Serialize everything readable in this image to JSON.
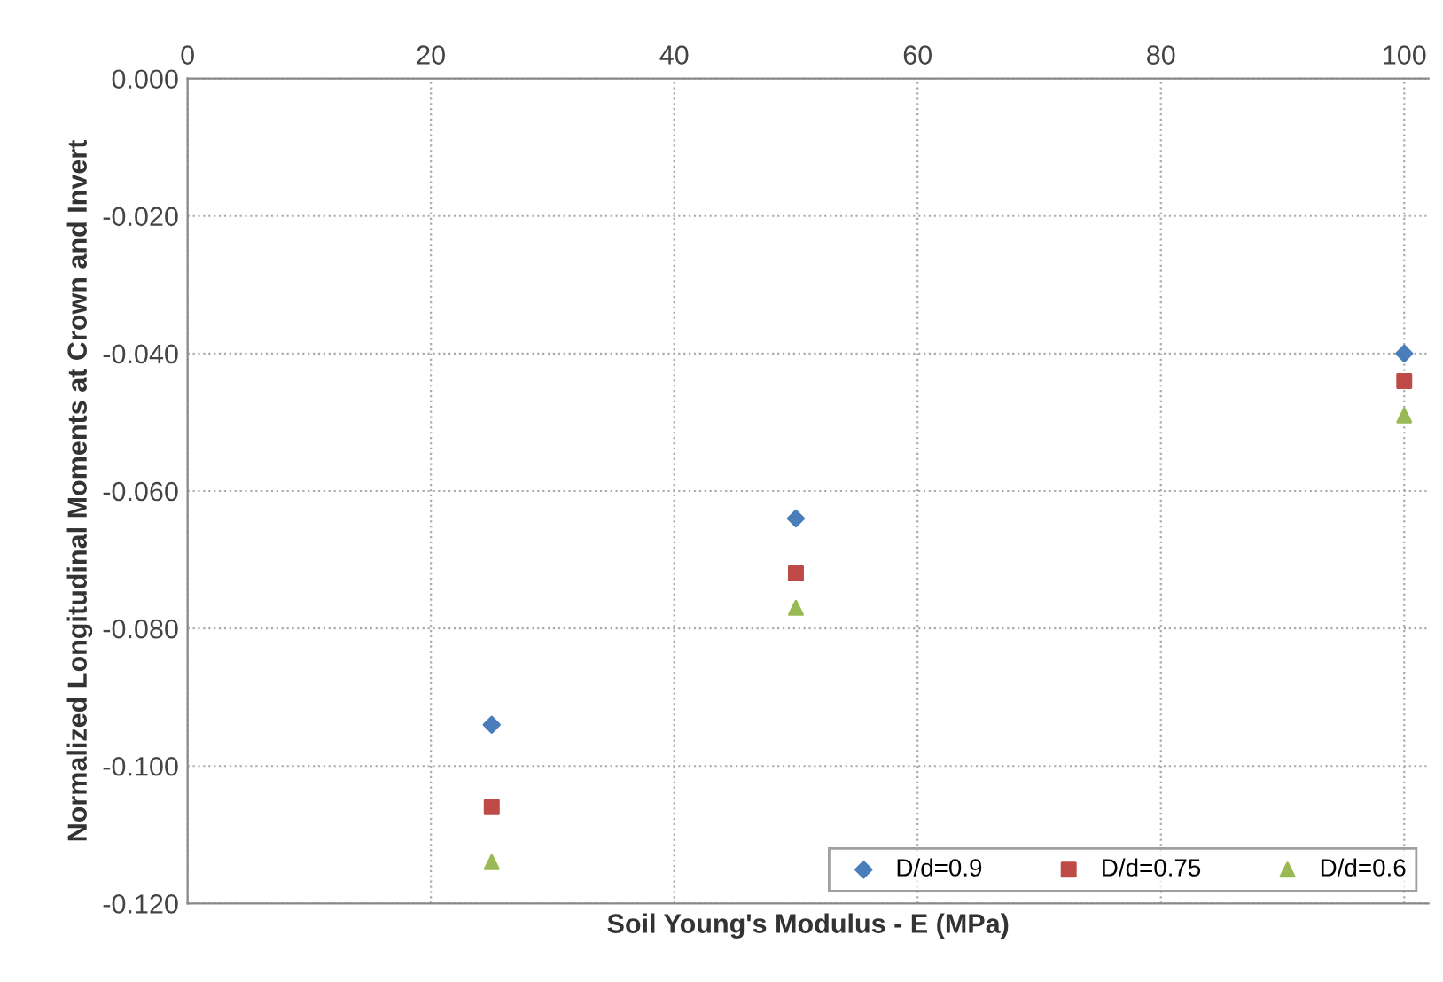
{
  "chart_data": {
    "type": "scatter",
    "xlabel": "Soil Young's Modulus - E (MPa)",
    "ylabel": "Normalized Longitudinal Moments at Crown and Invert",
    "x": [
      25,
      50,
      100
    ],
    "series": [
      {
        "name": "D/d=0.9",
        "color": "#4a7ebb",
        "marker": "diamond",
        "values": [
          -0.094,
          -0.064,
          -0.04
        ]
      },
      {
        "name": "D/d=0.75",
        "color": "#be4b48",
        "marker": "square",
        "values": [
          -0.106,
          -0.072,
          -0.044
        ]
      },
      {
        "name": "D/d=0.6",
        "color": "#98b954",
        "marker": "triangle",
        "values": [
          -0.114,
          -0.077,
          -0.049
        ]
      }
    ],
    "xlim": [
      0,
      102
    ],
    "xticks": [
      0,
      20,
      40,
      60,
      80,
      100
    ],
    "ylim": [
      -0.12,
      0.0
    ],
    "yticks": [
      {
        "value": 0.0,
        "label": "0.000"
      },
      {
        "value": -0.02,
        "label": "-0.020"
      },
      {
        "value": -0.04,
        "label": "-0.040"
      },
      {
        "value": -0.06,
        "label": "-0.060"
      },
      {
        "value": -0.08,
        "label": "-0.080"
      },
      {
        "value": -0.1,
        "label": "-0.100"
      },
      {
        "value": -0.12,
        "label": "-0.120"
      }
    ],
    "grid": true,
    "legend": "bottom right"
  }
}
